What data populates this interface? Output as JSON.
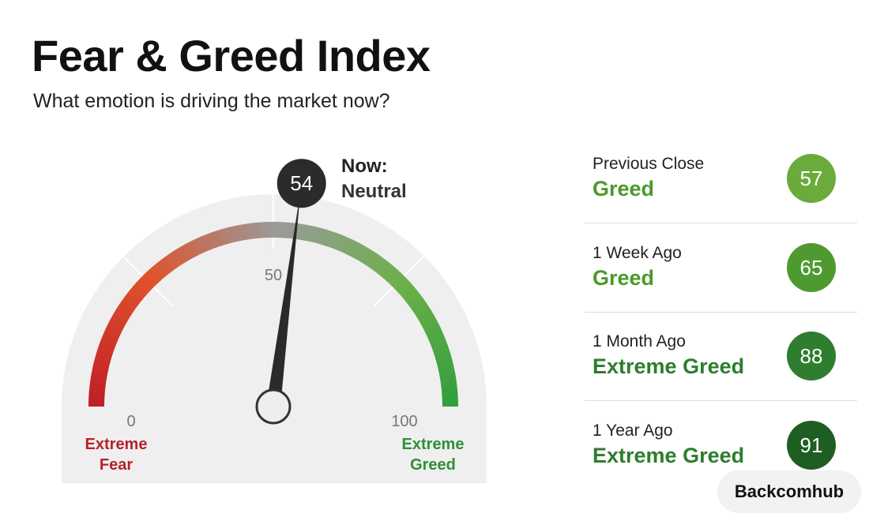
{
  "header": {
    "title": "Fear & Greed Index",
    "subtitle": "What emotion is driving the market now?"
  },
  "gauge": {
    "min": 0,
    "mid": 50,
    "max": 100,
    "value": 54,
    "now_label": "Now:",
    "rating": "Neutral",
    "low_label": "Extreme Fear",
    "high_label": "Extreme Greed",
    "colors": [
      "#c01f28",
      "#e0522b",
      "#9a9a9a",
      "#6db04a",
      "#2f9e3c"
    ]
  },
  "history": [
    {
      "label": "Previous Close",
      "rating": "Greed",
      "value": 57,
      "color": "#6aab3c",
      "rating_color": "#4a9a2a"
    },
    {
      "label": "1 Week Ago",
      "rating": "Greed",
      "value": 65,
      "color": "#4f9a30",
      "rating_color": "#4a9a2a"
    },
    {
      "label": "1 Month Ago",
      "rating": "Extreme Greed",
      "value": 88,
      "color": "#2f7d2f",
      "rating_color": "#2e7d2e"
    },
    {
      "label": "1 Year Ago",
      "rating": "Extreme Greed",
      "value": 91,
      "color": "#1f5e23",
      "rating_color": "#2e7d2e"
    }
  ],
  "brand": "Backcomhub"
}
